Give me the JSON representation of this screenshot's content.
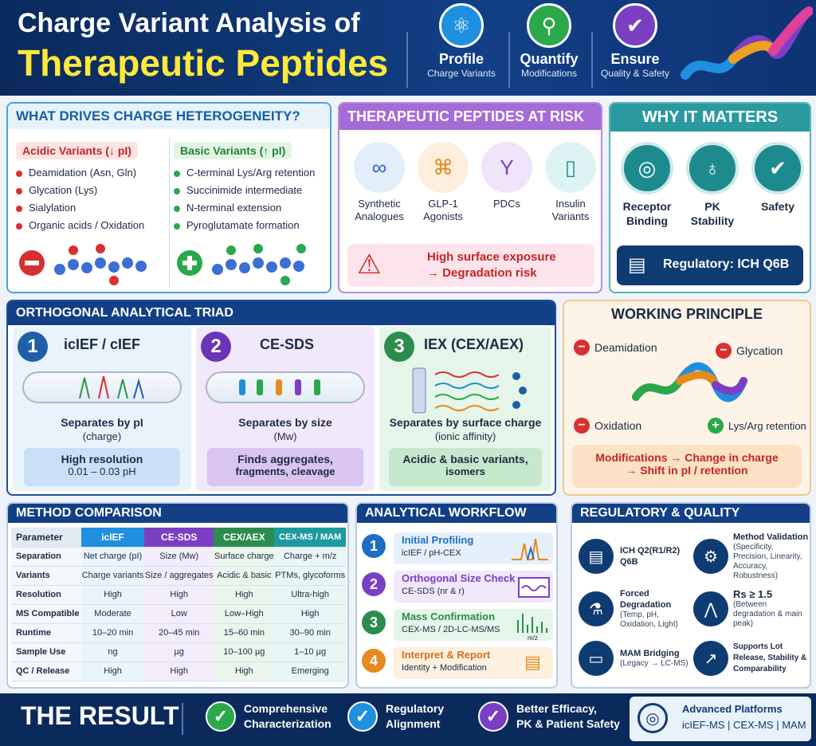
{
  "header": {
    "title_line1": "Charge Variant Analysis of",
    "title_line2": "Therapeutic Peptides",
    "pillars": [
      {
        "title": "Profile",
        "subtitle": "Charge Variants",
        "icon": "molecule-icon",
        "color": "#1f8fe0"
      },
      {
        "title": "Quantify",
        "subtitle": "Modifications",
        "icon": "magnifier-icon",
        "color": "#2aa84a"
      },
      {
        "title": "Ensure",
        "subtitle": "Quality & Safety",
        "icon": "shield-check-icon",
        "color": "#7b3fc4"
      }
    ]
  },
  "drivers": {
    "title": "WHAT DRIVES CHARGE HETEROGENEITY?",
    "acidic": {
      "label": "Acidic Variants (↓ pI)",
      "items": [
        "Deamidation (Asn, Gln)",
        "Glycation (Lys)",
        "Sialylation",
        "Organic acids / Oxidation"
      ]
    },
    "basic": {
      "label": "Basic Variants (↑ pI)",
      "items": [
        "C-terminal Lys/Arg retention",
        "Succinimide intermediate",
        "N-terminal extension",
        "Pyroglutamate formation"
      ]
    }
  },
  "risk": {
    "title": "THERAPEUTIC PEPTIDES AT RISK",
    "items": [
      {
        "label": "Synthetic Analogues",
        "icon": "peptide-chain-icon"
      },
      {
        "label": "GLP-1 Agonists",
        "icon": "glp1-icon"
      },
      {
        "label": "PDCs",
        "icon": "antibody-icon"
      },
      {
        "label": "Insulin Variants",
        "icon": "vial-icon"
      }
    ],
    "warning_line1": "High surface exposure",
    "warning_line2": "→ Degradation risk"
  },
  "matters": {
    "title": "WHY IT MATTERS",
    "items": [
      {
        "label": "Receptor Binding",
        "icon": "target-icon"
      },
      {
        "label": "PK Stability",
        "icon": "kidney-icon"
      },
      {
        "label": "Safety",
        "icon": "shield-check-icon"
      }
    ],
    "regulatory": "Regulatory: ICH Q6B"
  },
  "triad": {
    "title": "ORTHOGONAL ANALYTICAL TRIAD",
    "methods": [
      {
        "num": "1",
        "name": "icIEF / cIEF",
        "sep": "Separates by pI",
        "sep2": "(charge)",
        "note1": "High resolution",
        "note2": "0.01 – 0.03 pH",
        "color": "#1e5fa8"
      },
      {
        "num": "2",
        "name": "CE-SDS",
        "sep": "Separates by size",
        "sep2": "(Mw)",
        "note1": "Finds aggregates,",
        "note2": "fragments, cleavage",
        "color": "#6a35b8"
      },
      {
        "num": "3",
        "name": "IEX (CEX/AEX)",
        "sep": "Separates by surface charge",
        "sep2": "(ionic affinity)",
        "note1": "Acidic & basic variants,",
        "note2": "isomers",
        "color": "#2b8c4e"
      }
    ]
  },
  "principle": {
    "title": "WORKING PRINCIPLE",
    "labels": {
      "deamidation": "Deamidation",
      "glycation": "Glycation",
      "oxidation": "Oxidation",
      "lysarg": "Lys/Arg retention"
    },
    "footer1": "Modifications → Change in charge",
    "footer2": "→ Shift in pI / retention"
  },
  "comparison": {
    "title": "METHOD COMPARISON",
    "headers": [
      "Parameter",
      "icIEF",
      "CE-SDS",
      "CEX/AEX",
      "CEX-MS / MAM"
    ],
    "rows": [
      [
        "Separation",
        "Net charge (pI)",
        "Size (Mw)",
        "Surface charge",
        "Charge + m/z"
      ],
      [
        "Variants",
        "Charge variants",
        "Size / aggregates",
        "Acidic & basic",
        "PTMs, glycoforms"
      ],
      [
        "Resolution",
        "High",
        "High",
        "High",
        "Ultra-high"
      ],
      [
        "MS Compatible",
        "Moderate",
        "Low",
        "Low–High",
        "High"
      ],
      [
        "Runtime",
        "10–20 min",
        "20–45 min",
        "15–60 min",
        "30–90 min"
      ],
      [
        "Sample Use",
        "ng",
        "µg",
        "10–100 µg",
        "1–10 µg"
      ],
      [
        "QC / Release",
        "High",
        "High",
        "High",
        "Emerging"
      ]
    ]
  },
  "workflow": {
    "title": "ANALYTICAL WORKFLOW",
    "steps": [
      {
        "num": "1",
        "title": "Initial Profiling",
        "sub": "icIEF / pH-CEX",
        "color": "#1e6fc4"
      },
      {
        "num": "2",
        "title": "Orthogonal Size Check",
        "sub": "CE-SDS (nr & r)",
        "color": "#7a3fc4"
      },
      {
        "num": "3",
        "title": "Mass Confirmation",
        "sub": "CEX-MS / 2D-LC-MS/MS",
        "color": "#2b8c4e"
      },
      {
        "num": "4",
        "title": "Interpret & Report",
        "sub": "Identity + Modification",
        "color": "#e58a1f"
      }
    ],
    "mz_label": "m/z"
  },
  "regulatory": {
    "title": "REGULATORY & QUALITY",
    "items": [
      {
        "title": "ICH Q2(R1/R2) Q6B",
        "sub": "",
        "icon": "document-icon"
      },
      {
        "title": "Method Validation",
        "sub": "(Specificity, Precision, Linearity, Accuracy, Robustness)",
        "icon": "gear-icon"
      },
      {
        "title": "Forced Degradation",
        "sub": "(Temp, pH, Oxidation, Light)",
        "icon": "flask-icon"
      },
      {
        "title": "Rs ≥ 1.5",
        "sub": "(Between degradation & main peak)",
        "icon": "peak-icon"
      },
      {
        "title": "MAM Bridging",
        "sub": "(Legacy → LC-MS)",
        "icon": "monitor-icon"
      },
      {
        "title": "Supports Lot Release, Stability & Comparability",
        "sub": "",
        "icon": "growth-chart-icon"
      }
    ]
  },
  "result": {
    "title": "THE RESULT",
    "items": [
      {
        "line1": "Comprehensive",
        "line2": "Characterization",
        "color": "#2aa84a"
      },
      {
        "line1": "Regulatory",
        "line2": "Alignment",
        "color": "#1f8fe0"
      },
      {
        "line1": "Better Efficacy,",
        "line2": "PK & Patient Safety",
        "color": "#7b3fc4"
      }
    ],
    "platforms_title": "Advanced Platforms",
    "platforms": "icIEF-MS | CEX-MS | MAM"
  }
}
